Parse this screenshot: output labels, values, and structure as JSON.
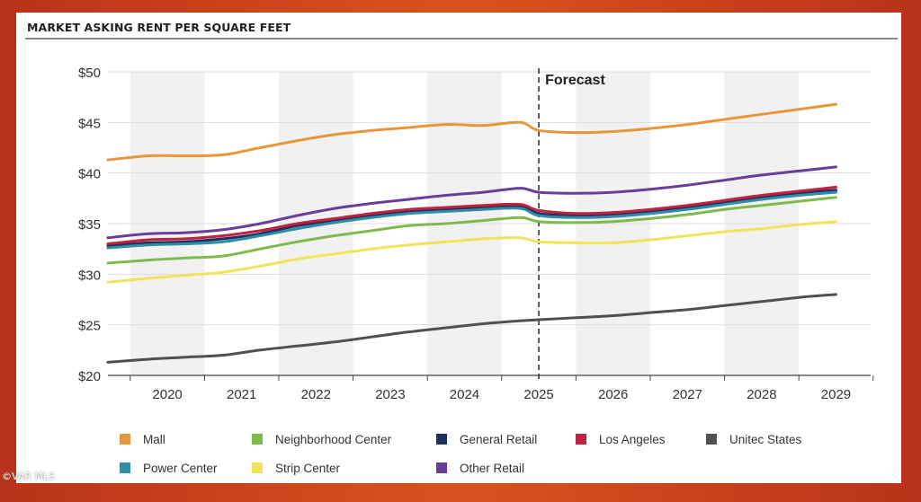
{
  "watermark": "©VAR MLS",
  "chart_data": {
    "type": "line",
    "title": "MARKET ASKING RENT PER SQUARE FEET",
    "xlabel": "",
    "ylabel": "",
    "ylim": [
      20,
      50
    ],
    "yticks": [
      20,
      25,
      30,
      35,
      40,
      45,
      50
    ],
    "ytick_labels": [
      "$20",
      "$25",
      "$30",
      "$35",
      "$40",
      "$45",
      "$50"
    ],
    "xlim": [
      2019.2,
      2029.2
    ],
    "xticks": [
      2020,
      2021,
      2022,
      2023,
      2024,
      2025,
      2026,
      2027,
      2028,
      2029
    ],
    "xtick_labels": [
      "2020",
      "2021",
      "2022",
      "2023",
      "2024",
      "2025",
      "2026",
      "2027",
      "2028",
      "2029"
    ],
    "forecast_x": 2025,
    "forecast_label": "Forecast",
    "x": [
      2019.2,
      2019.75,
      2020.25,
      2020.75,
      2021.25,
      2021.75,
      2022.25,
      2022.75,
      2023.25,
      2023.75,
      2024.25,
      2024.75,
      2025.0,
      2025.5,
      2026.0,
      2026.5,
      2027.0,
      2027.5,
      2028.0,
      2028.5,
      2029.0
    ],
    "series": [
      {
        "name": "Mall",
        "color": "#e8963a",
        "values": [
          41.3,
          41.7,
          41.7,
          41.8,
          42.5,
          43.2,
          43.8,
          44.2,
          44.5,
          44.8,
          44.7,
          45.0,
          44.2,
          44.0,
          44.1,
          44.4,
          44.8,
          45.3,
          45.8,
          46.3,
          46.8
        ]
      },
      {
        "name": "Neighborhood Center",
        "color": "#7cbc4c",
        "values": [
          31.1,
          31.4,
          31.6,
          31.8,
          32.5,
          33.2,
          33.8,
          34.3,
          34.8,
          35.0,
          35.3,
          35.6,
          35.2,
          35.1,
          35.2,
          35.5,
          35.9,
          36.4,
          36.8,
          37.2,
          37.6
        ]
      },
      {
        "name": "General Retail",
        "color": "#1f2f5e",
        "values": [
          32.8,
          33.1,
          33.2,
          33.5,
          34.0,
          34.8,
          35.3,
          35.8,
          36.2,
          36.4,
          36.6,
          36.7,
          36.0,
          35.8,
          35.9,
          36.2,
          36.6,
          37.1,
          37.6,
          38.0,
          38.3
        ]
      },
      {
        "name": "Los Angeles",
        "color": "#c0223f",
        "values": [
          33.0,
          33.4,
          33.5,
          33.8,
          34.3,
          35.0,
          35.5,
          36.0,
          36.4,
          36.6,
          36.8,
          36.9,
          36.3,
          36.0,
          36.1,
          36.4,
          36.8,
          37.3,
          37.8,
          38.2,
          38.6
        ]
      },
      {
        "name": "Unitec States",
        "color": "#505050",
        "values": [
          21.3,
          21.6,
          21.8,
          22.0,
          22.5,
          22.9,
          23.3,
          23.8,
          24.3,
          24.7,
          25.1,
          25.4,
          25.5,
          25.7,
          25.9,
          26.2,
          26.5,
          26.9,
          27.3,
          27.7,
          28.0
        ]
      },
      {
        "name": "Power Center",
        "color": "#2f8ea5",
        "values": [
          32.6,
          32.9,
          33.0,
          33.2,
          33.8,
          34.5,
          35.1,
          35.6,
          36.0,
          36.2,
          36.4,
          36.5,
          35.8,
          35.6,
          35.7,
          36.0,
          36.4,
          36.9,
          37.4,
          37.8,
          38.1
        ]
      },
      {
        "name": "Strip Center",
        "color": "#f2e45a",
        "values": [
          29.2,
          29.6,
          29.9,
          30.2,
          30.8,
          31.5,
          32.0,
          32.5,
          32.9,
          33.2,
          33.5,
          33.6,
          33.2,
          33.1,
          33.1,
          33.4,
          33.8,
          34.2,
          34.5,
          34.9,
          35.2
        ]
      },
      {
        "name": "Other Retail",
        "color": "#6a3d9a",
        "values": [
          33.6,
          34.0,
          34.1,
          34.4,
          35.0,
          35.8,
          36.5,
          37.0,
          37.4,
          37.8,
          38.1,
          38.5,
          38.1,
          38.0,
          38.1,
          38.4,
          38.8,
          39.3,
          39.8,
          40.2,
          40.6
        ]
      }
    ],
    "legend_order": [
      0,
      1,
      2,
      3,
      4,
      5,
      6,
      7
    ],
    "legend_position": "bottom",
    "grid": true
  }
}
